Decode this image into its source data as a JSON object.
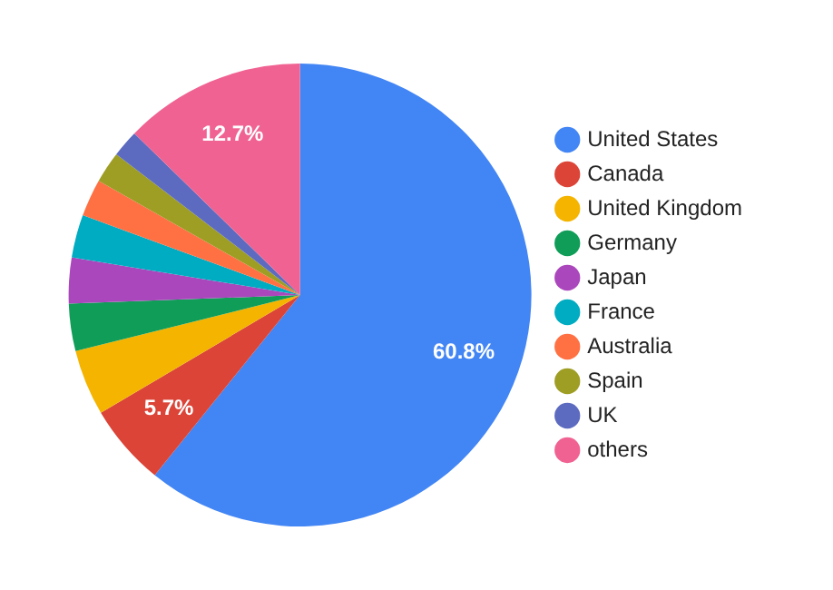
{
  "chart_data": {
    "type": "pie",
    "categories": [
      "United States",
      "Canada",
      "United Kingdom",
      "Germany",
      "Japan",
      "France",
      "Australia",
      "Spain",
      "UK",
      "others"
    ],
    "values": [
      60.8,
      5.7,
      4.6,
      3.3,
      3.2,
      3.0,
      2.6,
      2.2,
      1.9,
      12.7
    ],
    "colors": [
      "#4285f4",
      "#db4437",
      "#f4b400",
      "#0f9d58",
      "#ab47bc",
      "#00acc1",
      "#ff7043",
      "#9e9d24",
      "#5c6bc0",
      "#f06292"
    ],
    "value_labels": [
      "60.8%",
      "5.7%",
      null,
      null,
      null,
      null,
      null,
      null,
      null,
      "12.7%"
    ],
    "legend": "right"
  }
}
